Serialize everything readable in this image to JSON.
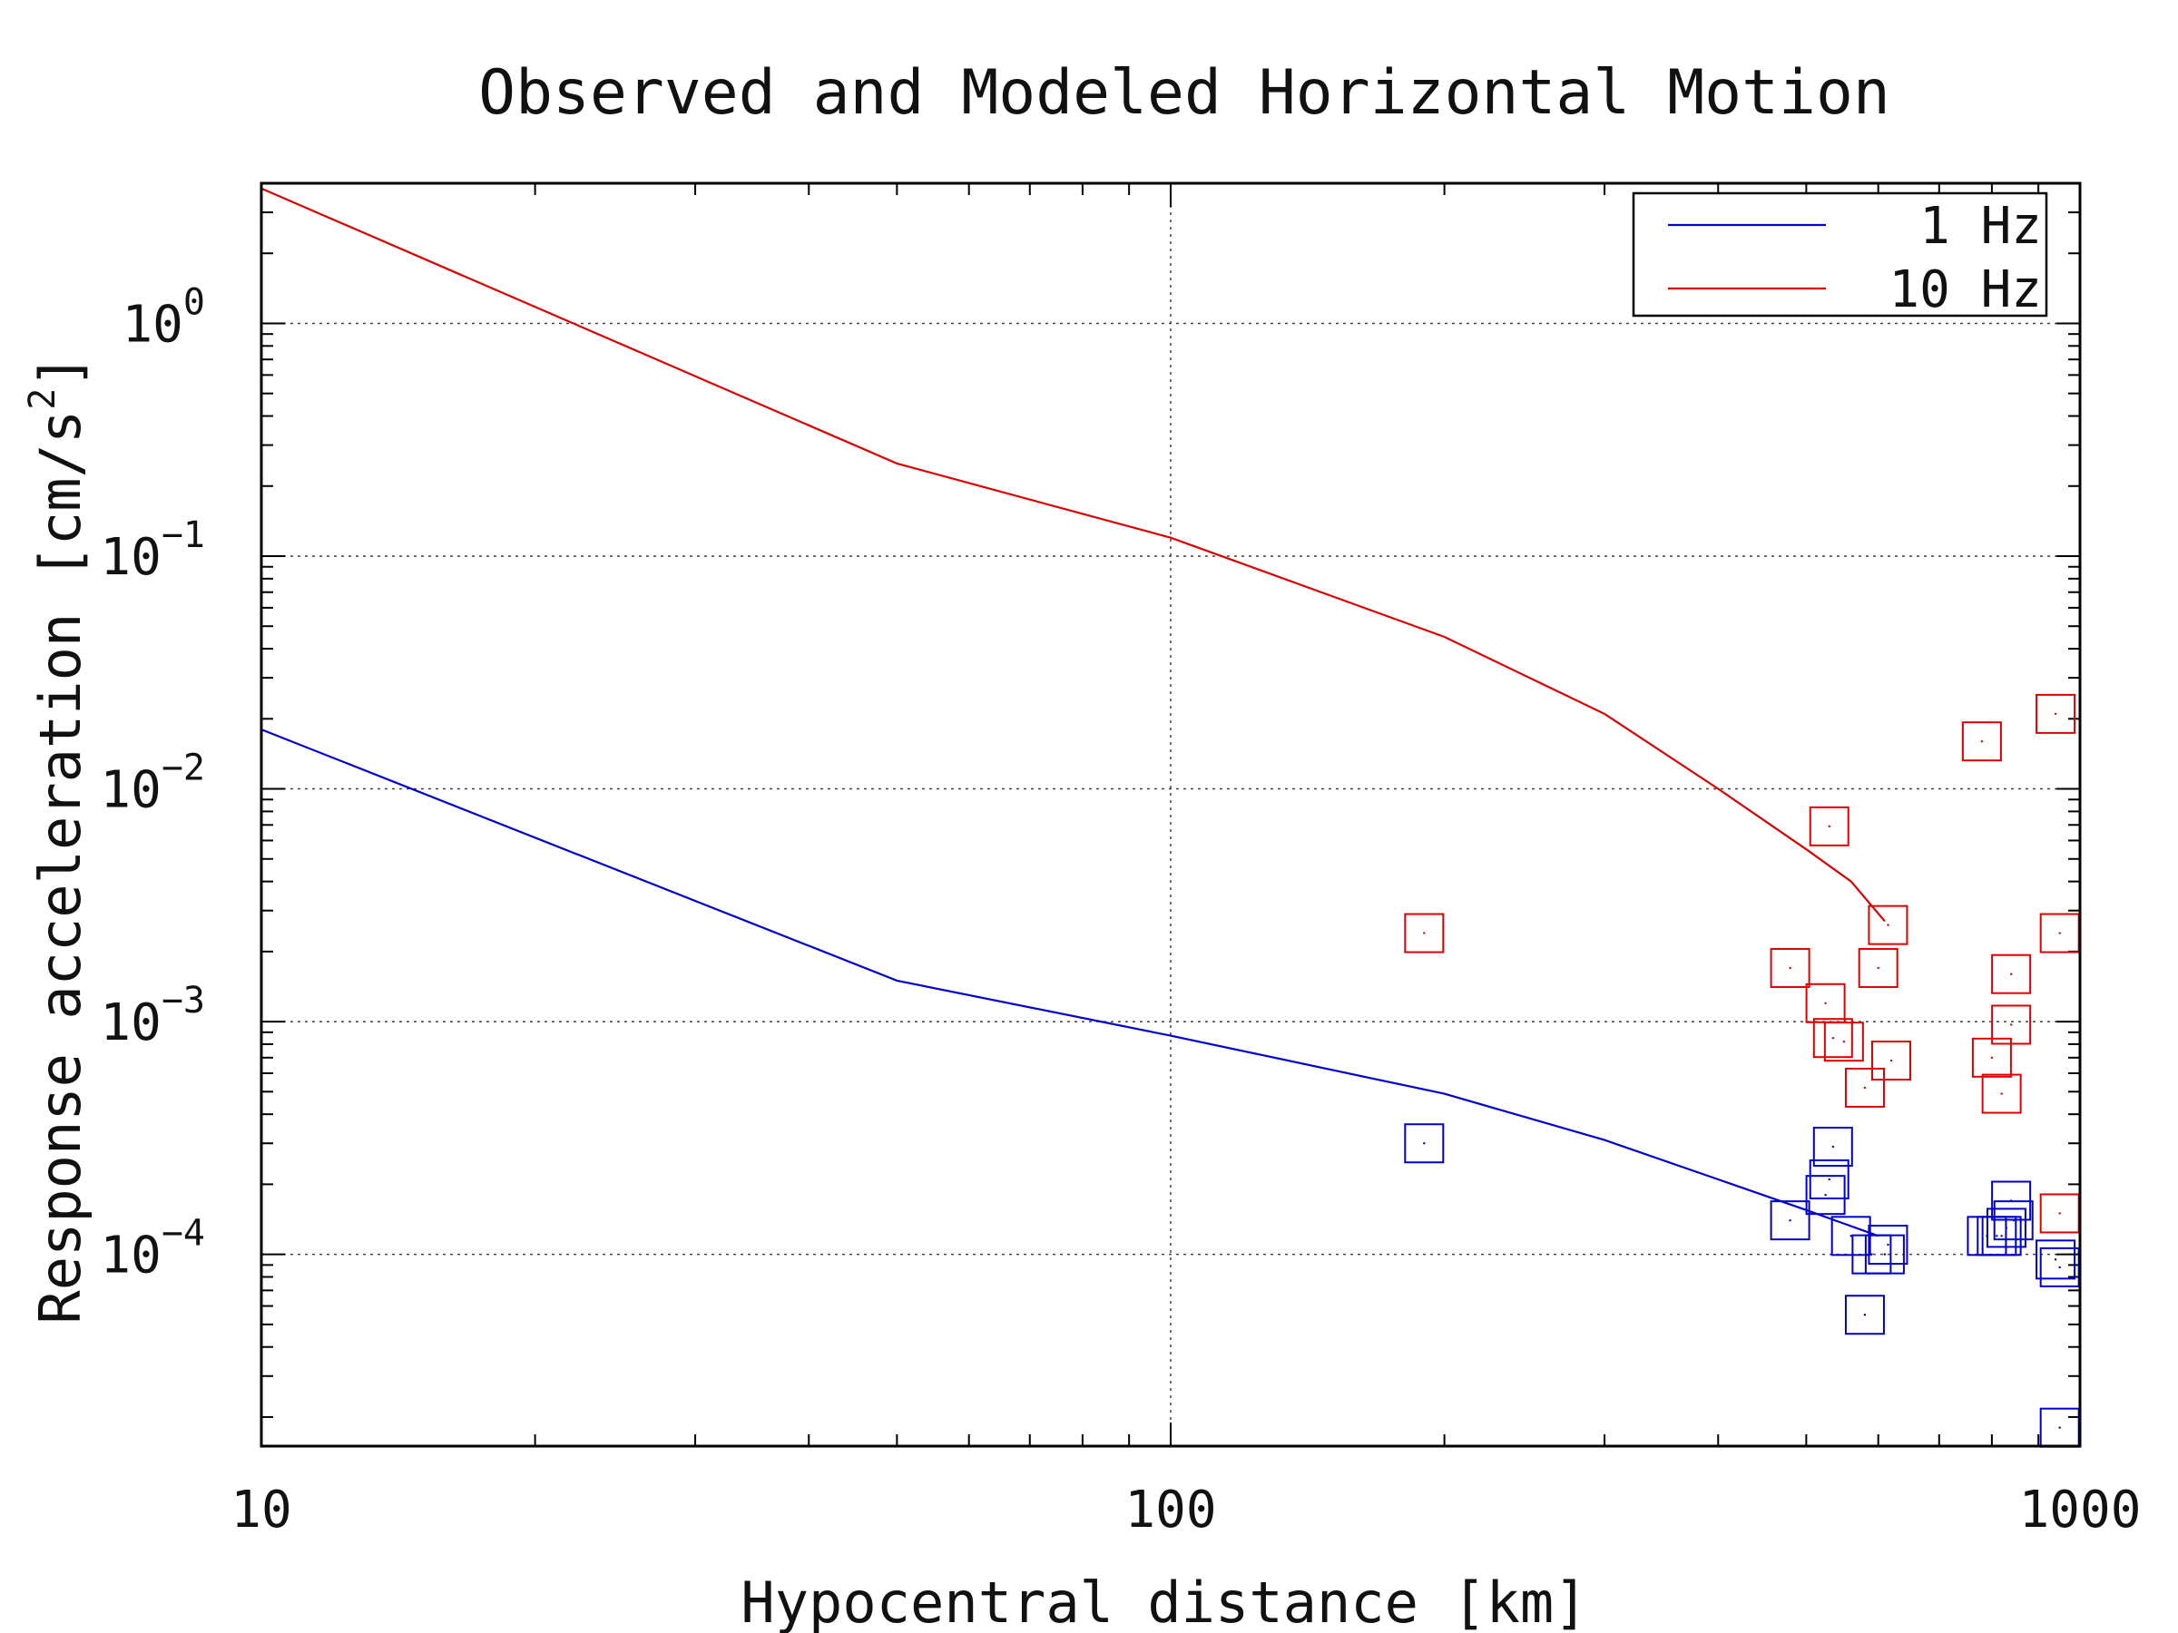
{
  "chart_data": {
    "type": "scatter",
    "title": "Observed and Modeled Horizontal Motion",
    "xlabel": "Hypocentral distance [km]",
    "ylabel": "Response acceleration [cm/s^2]",
    "x_scale": "log",
    "y_scale": "log",
    "xlim": [
      10,
      1000
    ],
    "ylim": [
      1.5e-05,
      4
    ],
    "grid": true,
    "legend_position": "top-right",
    "x_ticks": [
      {
        "value": 10,
        "label": "10"
      },
      {
        "value": 100,
        "label": "100"
      },
      {
        "value": 1000,
        "label": "1000"
      }
    ],
    "y_ticks": [
      {
        "value": 1,
        "base": "10",
        "exp": "0"
      },
      {
        "value": 0.1,
        "base": "10",
        "exp": "−1"
      },
      {
        "value": 0.01,
        "base": "10",
        "exp": "−2"
      },
      {
        "value": 0.001,
        "base": "10",
        "exp": "−3"
      },
      {
        "value": 0.0001,
        "base": "10",
        "exp": "−4"
      }
    ],
    "series": [
      {
        "name": "1 Hz",
        "color": "#0000cc",
        "model_line": {
          "x": [
            10,
            50,
            100,
            200,
            300,
            400,
            500,
            600
          ],
          "y": [
            0.018,
            0.0015,
            0.00087,
            0.00049,
            0.00031,
            0.00021,
            0.000155,
            0.00012
          ]
        },
        "observed": {
          "x": [
            190,
            480,
            525,
            530,
            535,
            560,
            580,
            590,
            610,
            615,
            790,
            810,
            820,
            830,
            840,
            845,
            940,
            950,
            950
          ],
          "y": [
            0.0003,
            0.00014,
            0.00018,
            0.00021,
            0.00029,
            0.00012,
            5.5e-05,
            0.0001,
            0.0001,
            0.00011,
            0.00012,
            0.00012,
            0.00012,
            0.00013,
            0.00017,
            0.00014,
            9.5e-05,
            8.8e-05,
            1.8e-05
          ]
        }
      },
      {
        "name": "10 Hz",
        "color": "#dd0000",
        "model_line": {
          "x": [
            10,
            50,
            100,
            200,
            300,
            400,
            500,
            560,
            610
          ],
          "y": [
            3.8,
            0.25,
            0.12,
            0.045,
            0.021,
            0.01,
            0.0055,
            0.004,
            0.0027
          ]
        },
        "observed": {
          "x": [
            190,
            480,
            525,
            530,
            535,
            550,
            580,
            600,
            615,
            620,
            780,
            800,
            820,
            840,
            840,
            940,
            950,
            950
          ],
          "y": [
            0.0024,
            0.0017,
            0.0012,
            0.0069,
            0.00085,
            0.00082,
            0.00052,
            0.0017,
            0.0026,
            0.00068,
            0.016,
            0.0007,
            0.00049,
            0.0016,
            0.00097,
            0.021,
            0.0024,
            0.00015
          ]
        }
      }
    ]
  }
}
